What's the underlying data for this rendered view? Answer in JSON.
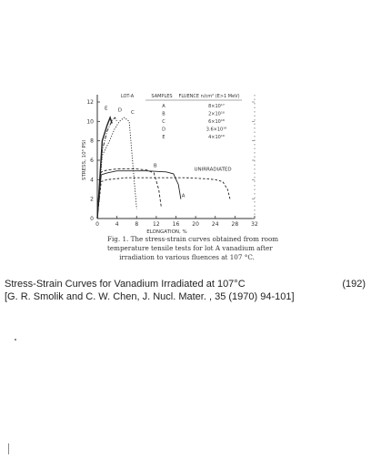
{
  "chart_data": {
    "type": "line",
    "lot_label": "LOT-A",
    "ylabel": "STRESS, 10³ PSI",
    "xlabel": "ELONGATION, %",
    "xlim": [
      0,
      32
    ],
    "ylim": [
      0,
      120
    ],
    "x_ticks": [
      "0",
      "4",
      "8",
      "12",
      "16",
      "20",
      "24",
      "28",
      "32"
    ],
    "y_ticks": [
      "0",
      "2",
      "4",
      "6",
      "8",
      "10",
      "12"
    ],
    "legend": {
      "header_samples": "SAMPLES",
      "header_fluence": "FLUENCE n/cm² (E>1 MeV)",
      "rows": [
        {
          "sample": "A",
          "fluence": "8×10¹⁷"
        },
        {
          "sample": "B",
          "fluence": "2×10¹⁸"
        },
        {
          "sample": "C",
          "fluence": "6×10¹⁸"
        },
        {
          "sample": "D",
          "fluence": "3.6×10¹⁹"
        },
        {
          "sample": "E",
          "fluence": "4×10¹⁹"
        }
      ]
    },
    "series": [
      {
        "name": "A",
        "x": [
          0,
          0.8,
          2,
          4,
          6,
          10,
          14,
          15.5,
          16.5,
          17
        ],
        "y": [
          0,
          45,
          47,
          49,
          49,
          49,
          48,
          46,
          35,
          20
        ]
      },
      {
        "name": "B",
        "x": [
          0,
          0.8,
          2,
          4,
          8,
          10,
          11.5,
          12.5,
          13
        ],
        "y": [
          0,
          48,
          50,
          51,
          51,
          50,
          47,
          30,
          12
        ]
      },
      {
        "name": "C",
        "x": [
          0,
          1,
          2.5,
          3.5,
          4.5,
          5.5,
          6.5,
          7.5,
          8
        ],
        "y": [
          0,
          65,
          80,
          92,
          100,
          104,
          100,
          40,
          10
        ]
      },
      {
        "name": "D",
        "x": [
          0,
          1,
          2,
          3,
          3.6,
          4
        ],
        "y": [
          0,
          70,
          90,
          101,
          104,
          100
        ]
      },
      {
        "name": "E",
        "x": [
          0,
          1,
          2,
          2.6,
          3
        ],
        "y": [
          0,
          80,
          96,
          104,
          98
        ]
      },
      {
        "name": "UNIRRADIATED",
        "x": [
          0,
          0.8,
          2,
          6,
          10,
          14,
          18,
          22,
          24,
          25.5,
          26.5,
          27
        ],
        "y": [
          0,
          38,
          40,
          42,
          42,
          42,
          42,
          41,
          40,
          38,
          30,
          20
        ]
      }
    ],
    "annotation": "UNIRRADIATED",
    "curve_labels": [
      "A",
      "B",
      "C",
      "D",
      "E"
    ]
  },
  "caption": {
    "line1": "Fig. 1.  The stress-strain curves obtained from room",
    "line2": "temperature tensile tests for lot A vanadium after",
    "line3": "irradiation to various fluences at 107 °C."
  },
  "citation": {
    "title": "Stress-Strain Curves for Vanadium Irradiated at 107°C",
    "reference": "[G. R. Smolik and C. W. Chen, J. Nucl. Mater. , 35 (1970) 94-101]",
    "number": "(192)"
  }
}
